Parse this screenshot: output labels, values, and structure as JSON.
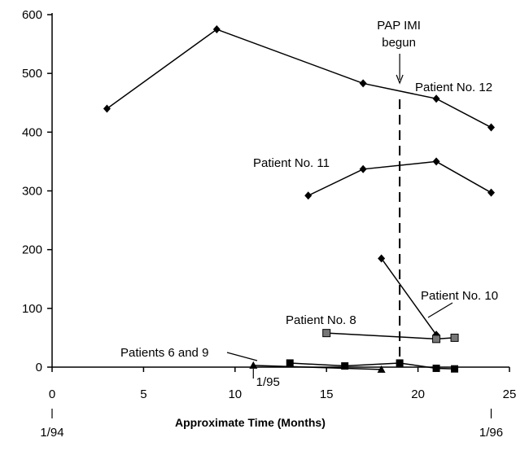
{
  "chart_data": {
    "type": "line",
    "title": "",
    "xlabel": "Approximate  Time   (Months)",
    "ylabel": "",
    "xlim": [
      0,
      25
    ],
    "ylim": [
      0,
      600
    ],
    "xticks": [
      0,
      5,
      10,
      15,
      20,
      25
    ],
    "yticks": [
      0,
      100,
      200,
      300,
      400,
      500,
      600
    ],
    "grid": false,
    "date_markers": [
      {
        "x": 0,
        "label": "1/94"
      },
      {
        "x": 11,
        "label": "1/95"
      },
      {
        "x": 24,
        "label": "1/96"
      }
    ],
    "event": {
      "x": 19,
      "label_line1": "PAP IMI",
      "label_line2": "begun"
    },
    "series": [
      {
        "name": "Patient No. 12",
        "marker": "diamond",
        "color": "#000000",
        "points": [
          [
            3,
            440
          ],
          [
            9,
            575
          ],
          [
            17,
            483
          ],
          [
            21,
            457
          ],
          [
            24,
            408
          ]
        ]
      },
      {
        "name": "Patient No. 11",
        "marker": "diamond",
        "color": "#000000",
        "points": [
          [
            14,
            292
          ],
          [
            17,
            337
          ],
          [
            21,
            350
          ],
          [
            24,
            297
          ]
        ]
      },
      {
        "name": "Patient No. 10",
        "marker": "diamond",
        "color": "#000000",
        "points": [
          [
            18,
            185
          ],
          [
            21,
            55
          ]
        ]
      },
      {
        "name": "Patient No. 8",
        "marker": "square",
        "color": "#777777",
        "points": [
          [
            15,
            58
          ],
          [
            21,
            48
          ],
          [
            22,
            50
          ]
        ]
      },
      {
        "name": "Patient 6",
        "marker": "square",
        "color": "#000000",
        "points": [
          [
            13,
            7
          ],
          [
            16,
            2
          ],
          [
            19,
            7
          ],
          [
            21,
            -2
          ],
          [
            22,
            -3
          ]
        ]
      },
      {
        "name": "Patient 9",
        "marker": "triangle",
        "color": "#000000",
        "points": [
          [
            11,
            3
          ],
          [
            18,
            -4
          ]
        ]
      }
    ],
    "annotations": [
      {
        "text": "Patient No. 12"
      },
      {
        "text": "Patient No. 11"
      },
      {
        "text": "Patient No. 10"
      },
      {
        "text": "Patient No. 8"
      },
      {
        "text": "Patients 6 and 9"
      }
    ]
  }
}
